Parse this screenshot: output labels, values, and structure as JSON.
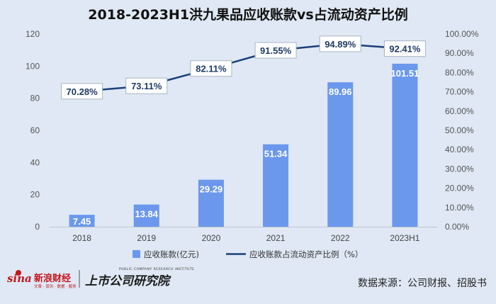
{
  "chart_data": {
    "type": "bar+line",
    "title": "2018-2023H1洪九果品应收账款vs占流动资产比例",
    "categories": [
      "2018",
      "2019",
      "2020",
      "2021",
      "2022",
      "2023H1"
    ],
    "series": [
      {
        "name": "应收账款(亿元)",
        "type": "bar",
        "axis": "left",
        "values": [
          7.45,
          13.84,
          29.29,
          51.34,
          89.96,
          101.51
        ],
        "labels": [
          "7.45",
          "13.84",
          "29.29",
          "51.34",
          "89.96",
          "101.51"
        ]
      },
      {
        "name": "应收账款占流动资产比例（%）",
        "type": "line",
        "axis": "right",
        "values": [
          70.28,
          73.11,
          82.11,
          91.55,
          94.89,
          92.41
        ],
        "labels": [
          "70.28%",
          "73.11%",
          "82.11%",
          "91.55%",
          "94.89%",
          "92.41%"
        ]
      }
    ],
    "y_left": {
      "min": 0,
      "max": 120,
      "ticks": [
        "0",
        "20",
        "40",
        "60",
        "80",
        "100",
        "120"
      ]
    },
    "y_right": {
      "min": 0,
      "max": 100,
      "ticks": [
        "0.00%",
        "10.00%",
        "20.00%",
        "30.00%",
        "40.00%",
        "50.00%",
        "60.00%",
        "70.00%",
        "80.00%",
        "90.00%",
        "100.00%"
      ]
    },
    "grid": false,
    "legend_position": "bottom",
    "colors": {
      "bar": "#6b98ec",
      "line": "#1c3f7a",
      "background": "#dfe8f4"
    }
  },
  "footer": {
    "source": "数据来源：公司财报、招股书",
    "logo_sina": "sina",
    "logo_sina_cn": "新浪财经",
    "logo_sina_sub": "文章 · 资讯 · 数据 · 服务",
    "logo_institute": "上市公司研究院",
    "logo_institute_en": "PUBLIC COMPANY RESEARCH INSTITUTE"
  }
}
